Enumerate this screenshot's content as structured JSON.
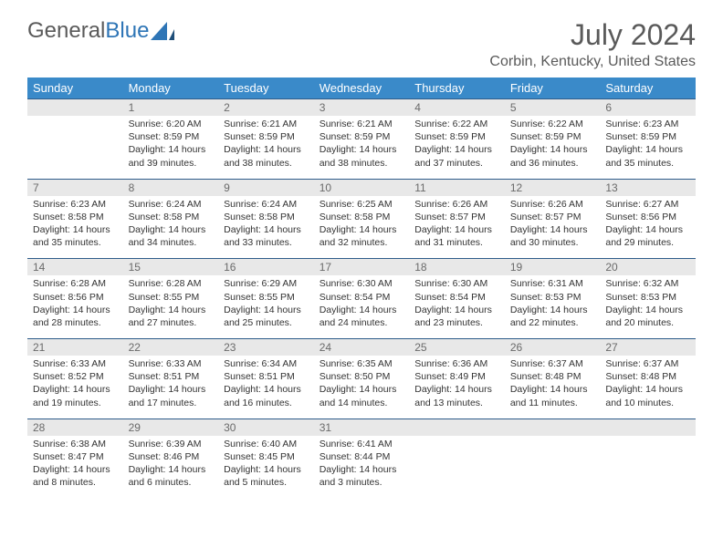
{
  "brand": {
    "part1": "General",
    "part2": "Blue"
  },
  "title": "July 2024",
  "location": "Corbin, Kentucky, United States",
  "colors": {
    "header_bg": "#3a8ac9",
    "header_text": "#ffffff",
    "daynum_bg": "#e8e8e8",
    "daynum_text": "#6a6a6a",
    "body_text": "#333333",
    "rule": "#2e5c8a",
    "brand_gray": "#5a5a5a",
    "brand_blue": "#2e75b6"
  },
  "weekdays": [
    "Sunday",
    "Monday",
    "Tuesday",
    "Wednesday",
    "Thursday",
    "Friday",
    "Saturday"
  ],
  "weeks": [
    [
      {
        "n": "",
        "sr": "",
        "ss": "",
        "dl": ""
      },
      {
        "n": "1",
        "sr": "Sunrise: 6:20 AM",
        "ss": "Sunset: 8:59 PM",
        "dl": "Daylight: 14 hours and 39 minutes."
      },
      {
        "n": "2",
        "sr": "Sunrise: 6:21 AM",
        "ss": "Sunset: 8:59 PM",
        "dl": "Daylight: 14 hours and 38 minutes."
      },
      {
        "n": "3",
        "sr": "Sunrise: 6:21 AM",
        "ss": "Sunset: 8:59 PM",
        "dl": "Daylight: 14 hours and 38 minutes."
      },
      {
        "n": "4",
        "sr": "Sunrise: 6:22 AM",
        "ss": "Sunset: 8:59 PM",
        "dl": "Daylight: 14 hours and 37 minutes."
      },
      {
        "n": "5",
        "sr": "Sunrise: 6:22 AM",
        "ss": "Sunset: 8:59 PM",
        "dl": "Daylight: 14 hours and 36 minutes."
      },
      {
        "n": "6",
        "sr": "Sunrise: 6:23 AM",
        "ss": "Sunset: 8:59 PM",
        "dl": "Daylight: 14 hours and 35 minutes."
      }
    ],
    [
      {
        "n": "7",
        "sr": "Sunrise: 6:23 AM",
        "ss": "Sunset: 8:58 PM",
        "dl": "Daylight: 14 hours and 35 minutes."
      },
      {
        "n": "8",
        "sr": "Sunrise: 6:24 AM",
        "ss": "Sunset: 8:58 PM",
        "dl": "Daylight: 14 hours and 34 minutes."
      },
      {
        "n": "9",
        "sr": "Sunrise: 6:24 AM",
        "ss": "Sunset: 8:58 PM",
        "dl": "Daylight: 14 hours and 33 minutes."
      },
      {
        "n": "10",
        "sr": "Sunrise: 6:25 AM",
        "ss": "Sunset: 8:58 PM",
        "dl": "Daylight: 14 hours and 32 minutes."
      },
      {
        "n": "11",
        "sr": "Sunrise: 6:26 AM",
        "ss": "Sunset: 8:57 PM",
        "dl": "Daylight: 14 hours and 31 minutes."
      },
      {
        "n": "12",
        "sr": "Sunrise: 6:26 AM",
        "ss": "Sunset: 8:57 PM",
        "dl": "Daylight: 14 hours and 30 minutes."
      },
      {
        "n": "13",
        "sr": "Sunrise: 6:27 AM",
        "ss": "Sunset: 8:56 PM",
        "dl": "Daylight: 14 hours and 29 minutes."
      }
    ],
    [
      {
        "n": "14",
        "sr": "Sunrise: 6:28 AM",
        "ss": "Sunset: 8:56 PM",
        "dl": "Daylight: 14 hours and 28 minutes."
      },
      {
        "n": "15",
        "sr": "Sunrise: 6:28 AM",
        "ss": "Sunset: 8:55 PM",
        "dl": "Daylight: 14 hours and 27 minutes."
      },
      {
        "n": "16",
        "sr": "Sunrise: 6:29 AM",
        "ss": "Sunset: 8:55 PM",
        "dl": "Daylight: 14 hours and 25 minutes."
      },
      {
        "n": "17",
        "sr": "Sunrise: 6:30 AM",
        "ss": "Sunset: 8:54 PM",
        "dl": "Daylight: 14 hours and 24 minutes."
      },
      {
        "n": "18",
        "sr": "Sunrise: 6:30 AM",
        "ss": "Sunset: 8:54 PM",
        "dl": "Daylight: 14 hours and 23 minutes."
      },
      {
        "n": "19",
        "sr": "Sunrise: 6:31 AM",
        "ss": "Sunset: 8:53 PM",
        "dl": "Daylight: 14 hours and 22 minutes."
      },
      {
        "n": "20",
        "sr": "Sunrise: 6:32 AM",
        "ss": "Sunset: 8:53 PM",
        "dl": "Daylight: 14 hours and 20 minutes."
      }
    ],
    [
      {
        "n": "21",
        "sr": "Sunrise: 6:33 AM",
        "ss": "Sunset: 8:52 PM",
        "dl": "Daylight: 14 hours and 19 minutes."
      },
      {
        "n": "22",
        "sr": "Sunrise: 6:33 AM",
        "ss": "Sunset: 8:51 PM",
        "dl": "Daylight: 14 hours and 17 minutes."
      },
      {
        "n": "23",
        "sr": "Sunrise: 6:34 AM",
        "ss": "Sunset: 8:51 PM",
        "dl": "Daylight: 14 hours and 16 minutes."
      },
      {
        "n": "24",
        "sr": "Sunrise: 6:35 AM",
        "ss": "Sunset: 8:50 PM",
        "dl": "Daylight: 14 hours and 14 minutes."
      },
      {
        "n": "25",
        "sr": "Sunrise: 6:36 AM",
        "ss": "Sunset: 8:49 PM",
        "dl": "Daylight: 14 hours and 13 minutes."
      },
      {
        "n": "26",
        "sr": "Sunrise: 6:37 AM",
        "ss": "Sunset: 8:48 PM",
        "dl": "Daylight: 14 hours and 11 minutes."
      },
      {
        "n": "27",
        "sr": "Sunrise: 6:37 AM",
        "ss": "Sunset: 8:48 PM",
        "dl": "Daylight: 14 hours and 10 minutes."
      }
    ],
    [
      {
        "n": "28",
        "sr": "Sunrise: 6:38 AM",
        "ss": "Sunset: 8:47 PM",
        "dl": "Daylight: 14 hours and 8 minutes."
      },
      {
        "n": "29",
        "sr": "Sunrise: 6:39 AM",
        "ss": "Sunset: 8:46 PM",
        "dl": "Daylight: 14 hours and 6 minutes."
      },
      {
        "n": "30",
        "sr": "Sunrise: 6:40 AM",
        "ss": "Sunset: 8:45 PM",
        "dl": "Daylight: 14 hours and 5 minutes."
      },
      {
        "n": "31",
        "sr": "Sunrise: 6:41 AM",
        "ss": "Sunset: 8:44 PM",
        "dl": "Daylight: 14 hours and 3 minutes."
      },
      {
        "n": "",
        "sr": "",
        "ss": "",
        "dl": ""
      },
      {
        "n": "",
        "sr": "",
        "ss": "",
        "dl": ""
      },
      {
        "n": "",
        "sr": "",
        "ss": "",
        "dl": ""
      }
    ]
  ]
}
